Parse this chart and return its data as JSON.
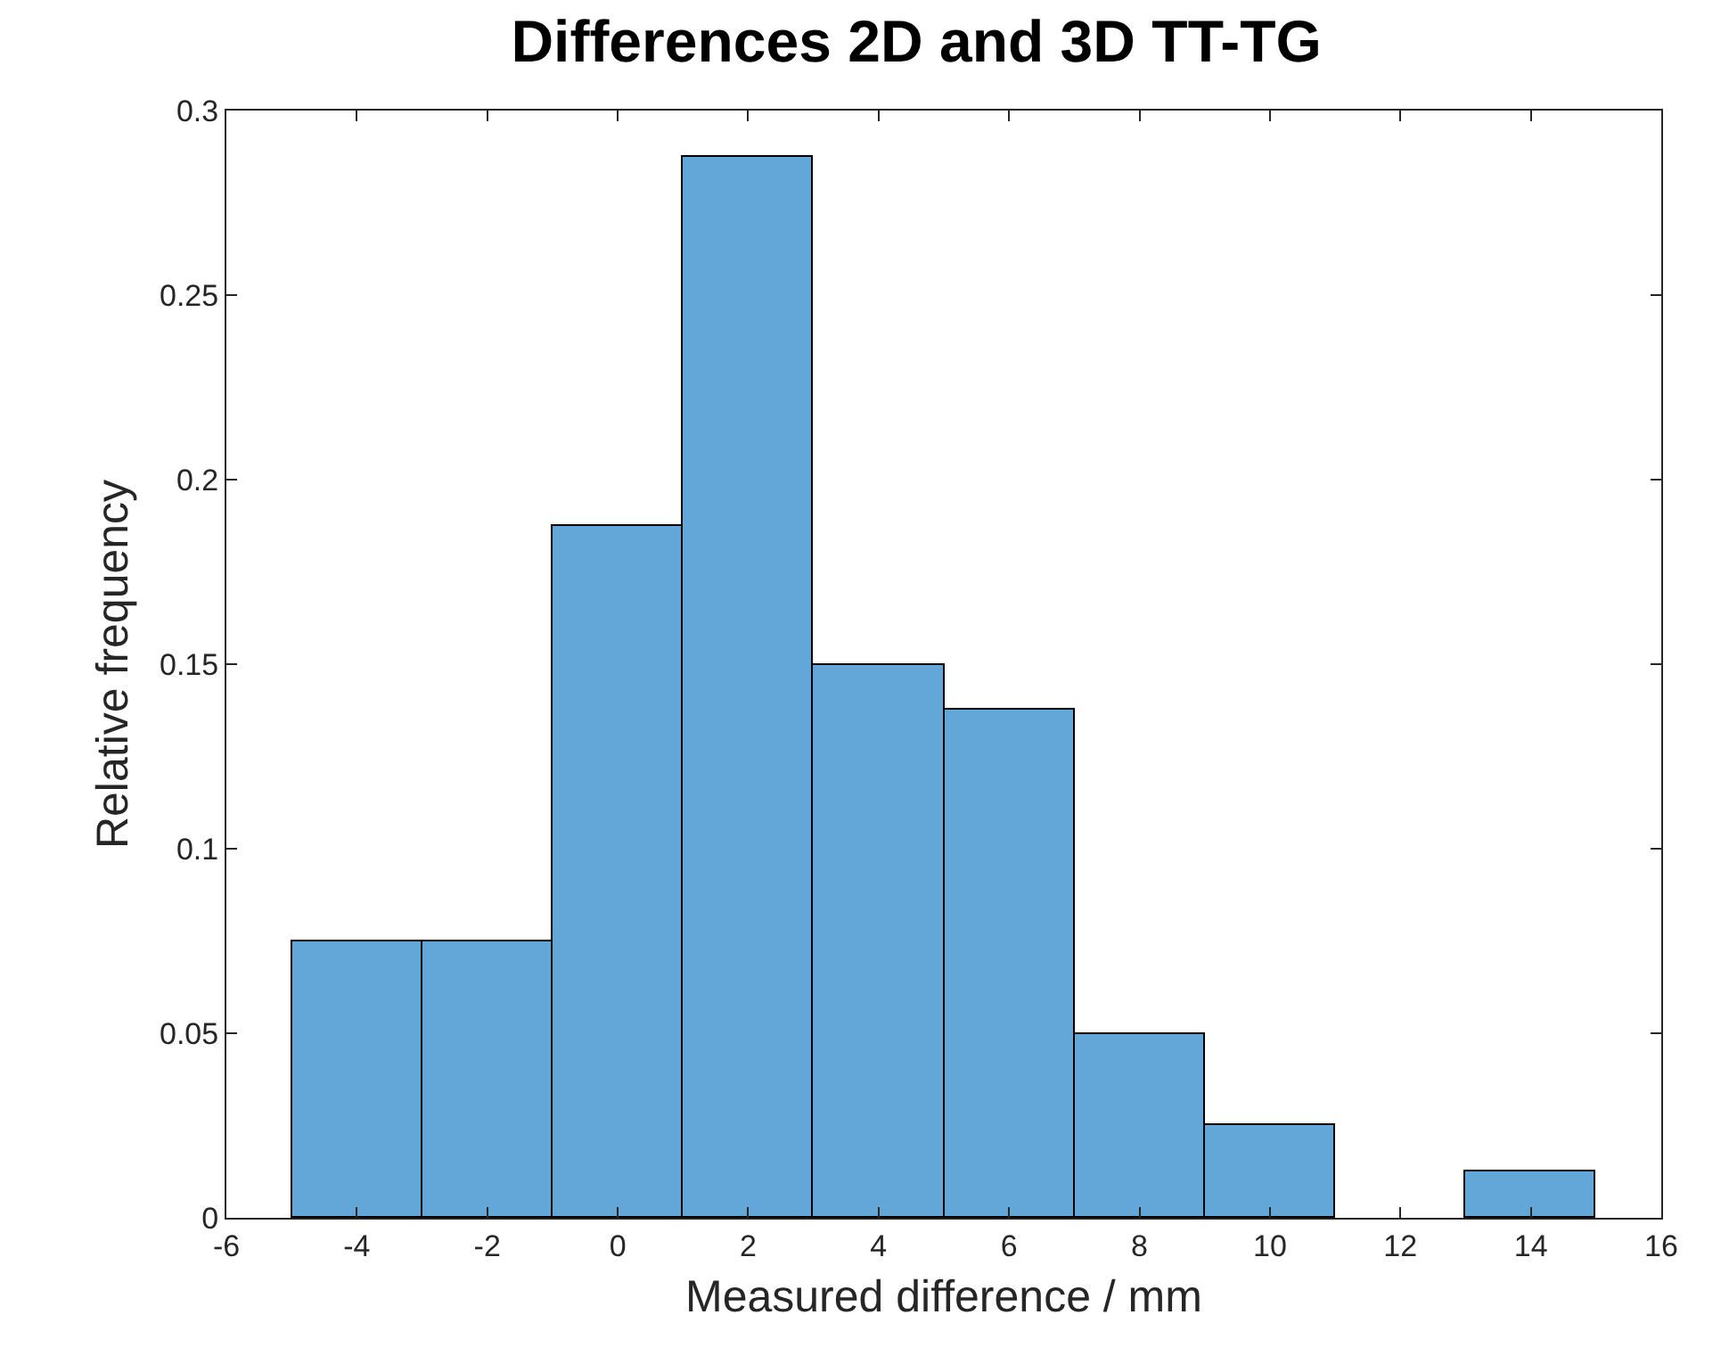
{
  "chart_data": {
    "type": "histogram",
    "title": "Differences 2D and 3D TT-TG",
    "xlabel": "Measured difference / mm",
    "ylabel": "Relative frequency",
    "bins": [
      -5,
      -3,
      -1,
      1,
      3,
      5,
      7,
      9,
      11,
      13,
      15
    ],
    "values": [
      0.075,
      0.075,
      0.1875,
      0.2875,
      0.15,
      0.1375,
      0.05,
      0.025,
      0,
      0.0125
    ],
    "color": "#62a7d7",
    "xlim": [
      -6,
      16
    ],
    "xticks": [
      -6,
      -4,
      -2,
      0,
      2,
      4,
      6,
      8,
      10,
      12,
      14,
      16
    ],
    "ylim": [
      0,
      0.3
    ],
    "yticks": [
      0,
      0.05,
      0.1,
      0.15,
      0.2,
      0.25,
      0.3
    ]
  }
}
